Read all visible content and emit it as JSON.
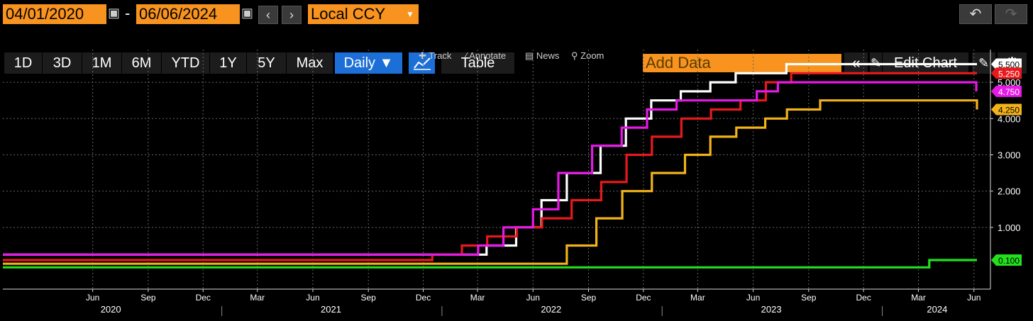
{
  "header": {
    "date_from": "04/01/2020",
    "date_sep": "-",
    "date_to": "06/06/2024",
    "currency": "Local CCY",
    "add_data_placeholder": "Add Data",
    "edit_chart": "Edit Chart",
    "periods": [
      "1D",
      "3D",
      "1M",
      "6M",
      "YTD",
      "1Y",
      "5Y",
      "Max"
    ],
    "frequency": "Daily ▼",
    "table": "Table",
    "tools": [
      "Track",
      "Annotate",
      "News",
      "Zoom"
    ]
  },
  "chart_data": {
    "type": "line",
    "step": true,
    "x_start": "2020-01-04",
    "x_end": "2024-06-06",
    "ylim": [
      -0.7,
      5.9
    ],
    "yticks": [
      1.0,
      2.0,
      3.0,
      4.0,
      5.0
    ],
    "ytick_labels": [
      "1.000",
      "2.000",
      "3.000",
      "4.000",
      "5.000"
    ],
    "month_ticks": [
      {
        "date": "2020-06-01",
        "label": "Jun"
      },
      {
        "date": "2020-09-01",
        "label": "Sep"
      },
      {
        "date": "2020-12-01",
        "label": "Dec"
      },
      {
        "date": "2021-03-01",
        "label": "Mar"
      },
      {
        "date": "2021-06-01",
        "label": "Jun"
      },
      {
        "date": "2021-09-01",
        "label": "Sep"
      },
      {
        "date": "2021-12-01",
        "label": "Dec"
      },
      {
        "date": "2022-03-01",
        "label": "Mar"
      },
      {
        "date": "2022-06-01",
        "label": "Jun"
      },
      {
        "date": "2022-09-01",
        "label": "Sep"
      },
      {
        "date": "2022-12-01",
        "label": "Dec"
      },
      {
        "date": "2023-03-01",
        "label": "Mar"
      },
      {
        "date": "2023-06-01",
        "label": "Jun"
      },
      {
        "date": "2023-09-01",
        "label": "Sep"
      },
      {
        "date": "2023-12-01",
        "label": "Dec"
      },
      {
        "date": "2024-03-01",
        "label": "Mar"
      },
      {
        "date": "2024-06-01",
        "label": "Jun"
      }
    ],
    "years": [
      {
        "label": "2020",
        "center": "2020-07-01",
        "start": "2020-01-04"
      },
      {
        "label": "2021",
        "center": "2021-07-01",
        "start": "2021-01-01"
      },
      {
        "label": "2022",
        "center": "2022-07-01",
        "start": "2022-01-01"
      },
      {
        "label": "2023",
        "center": "2023-07-01",
        "start": "2023-01-01"
      },
      {
        "label": "2024",
        "center": "2024-04-01",
        "start": "2024-01-01"
      }
    ],
    "series": [
      {
        "color": "#ffffff",
        "last_label": "5.500",
        "points": [
          [
            "2020-01-04",
            0.25
          ],
          [
            "2022-03-16",
            0.5
          ],
          [
            "2022-05-04",
            1.0
          ],
          [
            "2022-06-15",
            1.75
          ],
          [
            "2022-07-27",
            2.5
          ],
          [
            "2022-09-21",
            3.25
          ],
          [
            "2022-11-02",
            4.0
          ],
          [
            "2022-12-14",
            4.5
          ],
          [
            "2023-02-01",
            4.75
          ],
          [
            "2023-03-22",
            5.0
          ],
          [
            "2023-05-03",
            5.25
          ],
          [
            "2023-07-26",
            5.5
          ],
          [
            "2024-06-06",
            5.5
          ]
        ]
      },
      {
        "color": "#e8191c",
        "last_label": "5.250",
        "points": [
          [
            "2020-01-04",
            0.1
          ],
          [
            "2021-12-16",
            0.25
          ],
          [
            "2022-02-03",
            0.5
          ],
          [
            "2022-03-17",
            0.75
          ],
          [
            "2022-05-05",
            1.0
          ],
          [
            "2022-06-16",
            1.25
          ],
          [
            "2022-08-04",
            1.75
          ],
          [
            "2022-09-22",
            2.25
          ],
          [
            "2022-11-03",
            3.0
          ],
          [
            "2022-12-15",
            3.5
          ],
          [
            "2023-02-02",
            4.0
          ],
          [
            "2023-03-23",
            4.25
          ],
          [
            "2023-05-11",
            4.5
          ],
          [
            "2023-06-22",
            5.0
          ],
          [
            "2023-08-03",
            5.25
          ],
          [
            "2024-06-06",
            5.25
          ]
        ]
      },
      {
        "color": "#e619e6",
        "last_label": "4.750",
        "points": [
          [
            "2020-01-04",
            0.25
          ],
          [
            "2022-03-02",
            0.5
          ],
          [
            "2022-04-13",
            1.0
          ],
          [
            "2022-06-01",
            1.5
          ],
          [
            "2022-07-13",
            2.5
          ],
          [
            "2022-09-07",
            3.25
          ],
          [
            "2022-10-26",
            3.75
          ],
          [
            "2022-12-07",
            4.25
          ],
          [
            "2023-01-25",
            4.5
          ],
          [
            "2023-06-07",
            4.75
          ],
          [
            "2023-07-12",
            5.0
          ],
          [
            "2024-06-05",
            4.75
          ]
        ]
      },
      {
        "color": "#f2b21a",
        "last_label": "4.250",
        "points": [
          [
            "2020-01-04",
            0.0
          ],
          [
            "2022-07-27",
            0.5
          ],
          [
            "2022-09-14",
            1.25
          ],
          [
            "2022-10-27",
            2.0
          ],
          [
            "2022-12-15",
            2.5
          ],
          [
            "2023-02-08",
            3.0
          ],
          [
            "2023-03-22",
            3.5
          ],
          [
            "2023-05-04",
            3.75
          ],
          [
            "2023-06-21",
            4.0
          ],
          [
            "2023-07-27",
            4.25
          ],
          [
            "2023-09-20",
            4.5
          ],
          [
            "2024-06-06",
            4.25
          ]
        ]
      },
      {
        "color": "#22e01b",
        "last_label": "0.100",
        "points": [
          [
            "2020-01-04",
            -0.1
          ],
          [
            "2024-03-19",
            0.1
          ],
          [
            "2024-06-06",
            0.1
          ]
        ]
      }
    ]
  }
}
